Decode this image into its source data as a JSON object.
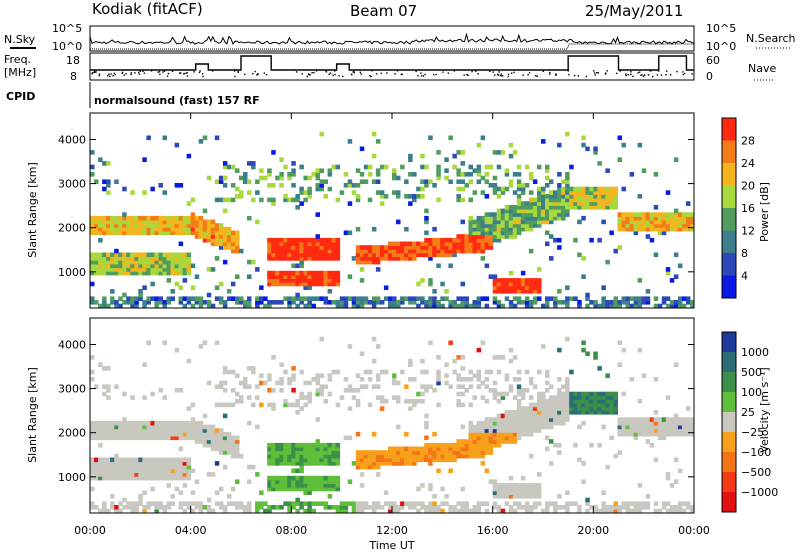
{
  "header": {
    "station": "Kodiak (fitACF)",
    "beam": "Beam 07",
    "date": "25/May/2011"
  },
  "strip": {
    "nsky_label": "N.Sky",
    "nsearch_label": "N.Search",
    "freq_label_1": "Freq.",
    "freq_label_2": "[MHz]",
    "nave_label": "Nave",
    "cpid_label": "CPID",
    "cpid_text": "normalsound (fast) 157 RF",
    "noise_left_ticks": [
      "10^5",
      "10^0"
    ],
    "noise_right_ticks": [
      "10^5",
      "10^0"
    ],
    "freq_ticks": [
      "18",
      "8"
    ],
    "nave_ticks": [
      "60",
      "0"
    ]
  },
  "chart_data": [
    {
      "type": "heatmap",
      "ylabel": "Slant Range [km]",
      "ylim": [
        180,
        4600
      ],
      "yticks": [
        "1000",
        "2000",
        "3000",
        "4000"
      ],
      "xlim": [
        0,
        24
      ],
      "colorbar": {
        "label": "Power [dB]",
        "ticks": [
          "4",
          "8",
          "12",
          "16",
          "20",
          "24",
          "28"
        ],
        "colors": [
          "#0a1ae6",
          "#2b49b8",
          "#3d7e8c",
          "#4f9c5e",
          "#a8d83c",
          "#f3b41e",
          "#f47c18",
          "#ff2a10"
        ]
      }
    },
    {
      "type": "heatmap",
      "ylabel": "Slant Range [km]",
      "ylim": [
        180,
        4600
      ],
      "yticks": [
        "1000",
        "2000",
        "3000",
        "4000"
      ],
      "xlim": [
        0,
        24
      ],
      "xlabel": "Time UT",
      "xticks": [
        "00:00",
        "04:00",
        "08:00",
        "12:00",
        "16:00",
        "20:00",
        "00:00"
      ],
      "colorbar": {
        "label": "Velocity [m s⁻¹]",
        "ticks": [
          "1000",
          "500",
          "100",
          "25",
          "−25",
          "−100",
          "−500",
          "−1000"
        ],
        "colors": [
          "#1e3a9c",
          "#2c6e78",
          "#3a9048",
          "#5fbe3a",
          "#c8c8c0",
          "#f7a01c",
          "#f47418",
          "#f23a14",
          "#e21010"
        ]
      }
    }
  ]
}
